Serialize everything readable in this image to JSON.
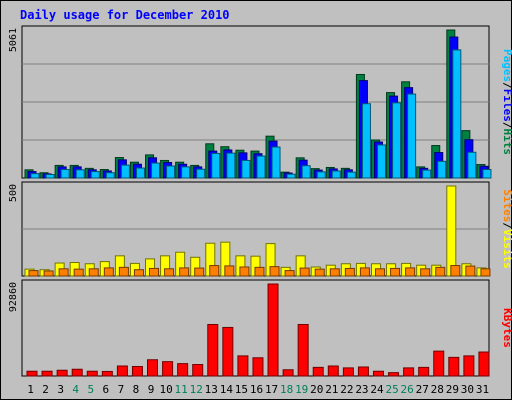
{
  "chart_data": [
    {
      "type": "bar",
      "title": "Daily usage for December 2010",
      "categories": [
        "1",
        "2",
        "3",
        "4",
        "5",
        "6",
        "7",
        "8",
        "9",
        "10",
        "11",
        "12",
        "13",
        "14",
        "15",
        "16",
        "17",
        "18",
        "19",
        "20",
        "21",
        "22",
        "23",
        "24",
        "25",
        "26",
        "27",
        "28",
        "29",
        "30",
        "31"
      ],
      "weekend_days": [
        "4",
        "5",
        "11",
        "12",
        "18",
        "19",
        "25",
        "26"
      ],
      "ymax_label": "5061",
      "ylim": [
        0,
        5061
      ],
      "right_label": [
        "Pages",
        "/",
        "Files",
        "/",
        "Hits"
      ],
      "series": [
        {
          "name": "Hits",
          "color": "#008040",
          "values": [
            280,
            180,
            430,
            430,
            330,
            290,
            700,
            540,
            790,
            600,
            540,
            430,
            1170,
            1070,
            950,
            920,
            1430,
            200,
            690,
            320,
            360,
            330,
            3540,
            1300,
            2920,
            3290,
            380,
            1110,
            5061,
            1620,
            460
          ]
        },
        {
          "name": "Files",
          "color": "#0000ff",
          "values": [
            220,
            140,
            380,
            380,
            280,
            240,
            620,
            470,
            690,
            530,
            470,
            380,
            920,
            960,
            860,
            830,
            1260,
            170,
            610,
            270,
            310,
            280,
            3330,
            1230,
            2800,
            3090,
            330,
            870,
            4820,
            1310,
            400
          ]
        },
        {
          "name": "Pages",
          "color": "#00c0ff",
          "values": [
            150,
            120,
            290,
            280,
            220,
            180,
            440,
            340,
            510,
            410,
            380,
            300,
            840,
            850,
            600,
            750,
            1060,
            130,
            420,
            210,
            240,
            200,
            2540,
            1130,
            2570,
            2870,
            270,
            570,
            4380,
            880,
            290
          ]
        }
      ]
    },
    {
      "type": "bar",
      "categories": [
        "1",
        "2",
        "3",
        "4",
        "5",
        "6",
        "7",
        "8",
        "9",
        "10",
        "11",
        "12",
        "13",
        "14",
        "15",
        "16",
        "17",
        "18",
        "19",
        "20",
        "21",
        "22",
        "23",
        "24",
        "25",
        "26",
        "27",
        "28",
        "29",
        "30",
        "31"
      ],
      "ymax_label": "500",
      "ylim": [
        0,
        500
      ],
      "right_label": [
        "Sites",
        "/",
        "Visits"
      ],
      "series": [
        {
          "name": "Visits",
          "color": "#ffff00",
          "values": [
            38,
            35,
            72,
            75,
            68,
            80,
            112,
            70,
            95,
            112,
            132,
            104,
            182,
            188,
            112,
            110,
            180,
            48,
            112,
            50,
            60,
            68,
            70,
            68,
            68,
            70,
            60,
            60,
            500,
            68,
            45
          ]
        },
        {
          "name": "Sites",
          "color": "#ff8000",
          "values": [
            30,
            28,
            40,
            38,
            40,
            45,
            48,
            35,
            42,
            40,
            45,
            44,
            58,
            56,
            50,
            48,
            52,
            30,
            44,
            38,
            40,
            42,
            45,
            40,
            42,
            45,
            40,
            48,
            58,
            55,
            40
          ]
        }
      ]
    },
    {
      "type": "bar",
      "categories": [
        "1",
        "2",
        "3",
        "4",
        "5",
        "6",
        "7",
        "8",
        "9",
        "10",
        "11",
        "12",
        "13",
        "14",
        "15",
        "16",
        "17",
        "18",
        "19",
        "20",
        "21",
        "22",
        "23",
        "24",
        "25",
        "26",
        "27",
        "28",
        "29",
        "30",
        "31"
      ],
      "ymax_label": "92860",
      "ylim": [
        0,
        92860
      ],
      "right_label": [
        "KBytes"
      ],
      "series": [
        {
          "name": "KBytes",
          "color": "#ff0000",
          "values": [
            4800,
            4800,
            5800,
            6800,
            4800,
            4600,
            10100,
            9600,
            16400,
            14500,
            12500,
            11600,
            52000,
            49000,
            20300,
            18400,
            92860,
            6300,
            52000,
            8700,
            10100,
            8200,
            9100,
            4800,
            3400,
            8200,
            8700,
            25100,
            18800,
            20300,
            24200
          ]
        }
      ]
    }
  ]
}
